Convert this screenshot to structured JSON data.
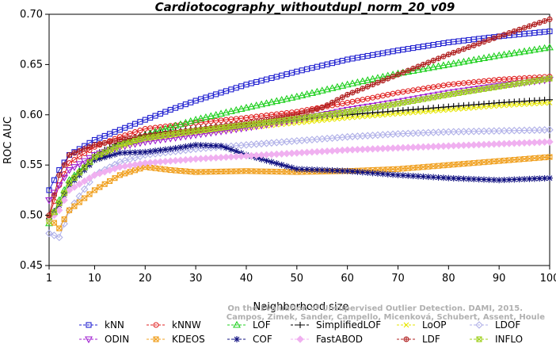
{
  "chart_data": {
    "type": "line",
    "title": "Cardiotocography_withoutdupl_norm_20_v09",
    "xlabel": "Neighborhood size",
    "ylabel": "ROC AUC",
    "xlim": [
      1,
      100
    ],
    "ylim": [
      0.45,
      0.7
    ],
    "xticks": [
      1,
      10,
      20,
      30,
      40,
      50,
      60,
      70,
      80,
      90,
      100
    ],
    "yticks": [
      0.45,
      0.5,
      0.55,
      0.6,
      0.65,
      0.7
    ],
    "grid": false,
    "legend_position": "bottom",
    "watermark": [
      "Campos, Zimek, Sander, Campello, Micenková, Schubert, Assent, Houle",
      "On the Evaluation of Unsupervised Outlier Detection. DAMI, 2015."
    ],
    "series": [
      {
        "name": "kNN",
        "color": "#1f1fd0",
        "marker": "square",
        "x": [
          1,
          3,
          5,
          10,
          15,
          20,
          25,
          30,
          40,
          50,
          60,
          70,
          80,
          90,
          100
        ],
        "y": [
          0.525,
          0.545,
          0.56,
          0.575,
          0.585,
          0.595,
          0.605,
          0.614,
          0.63,
          0.643,
          0.655,
          0.664,
          0.672,
          0.678,
          0.683
        ]
      },
      {
        "name": "kNNW",
        "color": "#e02020",
        "marker": "circle",
        "x": [
          1,
          3,
          5,
          10,
          15,
          20,
          30,
          40,
          50,
          60,
          70,
          80,
          90,
          100
        ],
        "y": [
          0.498,
          0.53,
          0.552,
          0.568,
          0.578,
          0.586,
          0.592,
          0.597,
          0.603,
          0.612,
          0.622,
          0.63,
          0.635,
          0.638
        ]
      },
      {
        "name": "LOF",
        "color": "#20d020",
        "marker": "triangle-up",
        "x": [
          1,
          3,
          5,
          10,
          15,
          20,
          30,
          40,
          50,
          60,
          70,
          80,
          90,
          100
        ],
        "y": [
          0.492,
          0.515,
          0.535,
          0.558,
          0.57,
          0.58,
          0.595,
          0.607,
          0.618,
          0.63,
          0.641,
          0.65,
          0.659,
          0.667
        ]
      },
      {
        "name": "SimplifiedLOF",
        "color": "#000000",
        "marker": "plus",
        "x": [
          1,
          3,
          5,
          10,
          15,
          20,
          30,
          40,
          50,
          60,
          70,
          80,
          90,
          100
        ],
        "y": [
          0.496,
          0.512,
          0.532,
          0.56,
          0.573,
          0.58,
          0.586,
          0.591,
          0.595,
          0.6,
          0.604,
          0.608,
          0.612,
          0.615
        ]
      },
      {
        "name": "LoOP",
        "color": "#e6e600",
        "marker": "x",
        "x": [
          1,
          3,
          5,
          10,
          15,
          20,
          30,
          40,
          50,
          60,
          70,
          80,
          90,
          100
        ],
        "y": [
          0.494,
          0.51,
          0.53,
          0.555,
          0.568,
          0.575,
          0.582,
          0.587,
          0.592,
          0.597,
          0.601,
          0.605,
          0.609,
          0.612
        ]
      },
      {
        "name": "LDOF",
        "color": "#b0b0e8",
        "marker": "diamond",
        "x": [
          1,
          3,
          5,
          10,
          15,
          20,
          30,
          40,
          50,
          60,
          70,
          80,
          90,
          100
        ],
        "y": [
          0.482,
          0.478,
          0.505,
          0.54,
          0.553,
          0.56,
          0.566,
          0.57,
          0.574,
          0.578,
          0.581,
          0.583,
          0.584,
          0.585
        ]
      },
      {
        "name": "ODIN",
        "color": "#a020d0",
        "marker": "triangle-down",
        "x": [
          1,
          3,
          5,
          10,
          15,
          20,
          30,
          40,
          50,
          60,
          70,
          80,
          90,
          100
        ],
        "y": [
          0.515,
          0.53,
          0.545,
          0.56,
          0.568,
          0.573,
          0.58,
          0.587,
          0.595,
          0.605,
          0.613,
          0.622,
          0.629,
          0.635
        ]
      },
      {
        "name": "KDEOS",
        "color": "#f0a020",
        "marker": "square-x",
        "x": [
          1,
          3,
          5,
          10,
          15,
          20,
          25,
          30,
          40,
          50,
          60,
          70,
          80,
          90,
          100
        ],
        "y": [
          0.498,
          0.487,
          0.505,
          0.525,
          0.54,
          0.548,
          0.545,
          0.543,
          0.544,
          0.543,
          0.544,
          0.546,
          0.55,
          0.554,
          0.558
        ]
      },
      {
        "name": "COF",
        "color": "#101080",
        "marker": "star",
        "x": [
          1,
          3,
          5,
          10,
          15,
          20,
          25,
          30,
          35,
          40,
          45,
          50,
          60,
          70,
          80,
          90,
          100
        ],
        "y": [
          0.497,
          0.51,
          0.53,
          0.555,
          0.562,
          0.563,
          0.566,
          0.57,
          0.569,
          0.56,
          0.553,
          0.546,
          0.544,
          0.54,
          0.537,
          0.535,
          0.537
        ]
      },
      {
        "name": "FastABOD",
        "color": "#f0b0f0",
        "marker": "diamond-filled",
        "x": [
          1,
          3,
          5,
          10,
          15,
          20,
          30,
          40,
          50,
          60,
          70,
          80,
          90,
          100
        ],
        "y": [
          0.495,
          0.505,
          0.525,
          0.54,
          0.548,
          0.552,
          0.556,
          0.559,
          0.562,
          0.565,
          0.567,
          0.569,
          0.571,
          0.573
        ]
      },
      {
        "name": "LDF",
        "color": "#b02020",
        "marker": "circle-plus",
        "x": [
          1,
          3,
          5,
          10,
          15,
          20,
          30,
          40,
          50,
          55,
          60,
          70,
          80,
          90,
          100
        ],
        "y": [
          0.5,
          0.54,
          0.56,
          0.57,
          0.575,
          0.579,
          0.585,
          0.592,
          0.6,
          0.607,
          0.62,
          0.64,
          0.66,
          0.678,
          0.695
        ]
      },
      {
        "name": "INFLO",
        "color": "#a0d020",
        "marker": "square-x",
        "x": [
          1,
          3,
          5,
          10,
          15,
          20,
          30,
          40,
          50,
          60,
          70,
          80,
          90,
          100
        ],
        "y": [
          0.494,
          0.512,
          0.532,
          0.558,
          0.57,
          0.577,
          0.584,
          0.59,
          0.596,
          0.603,
          0.611,
          0.62,
          0.628,
          0.636
        ]
      }
    ],
    "legend_rows": [
      [
        "kNN",
        "kNNW",
        "LOF",
        "SimplifiedLOF",
        "LoOP",
        "LDOF"
      ],
      [
        "ODIN",
        "KDEOS",
        "COF",
        "FastABOD",
        "LDF",
        "INFLO"
      ]
    ]
  }
}
